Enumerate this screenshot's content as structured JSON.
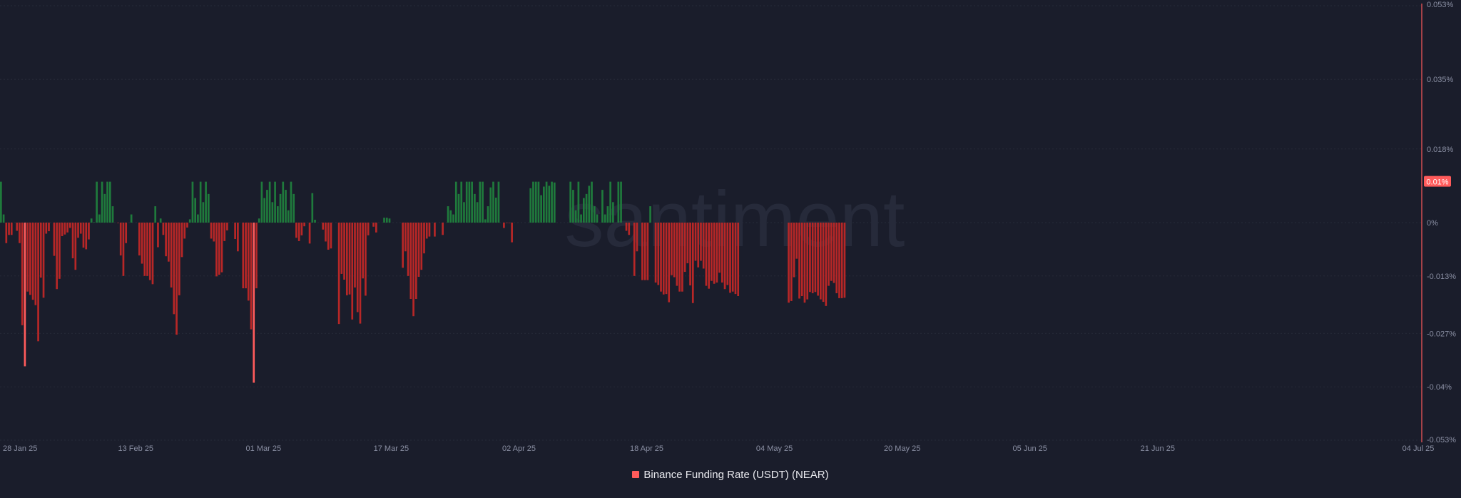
{
  "chart_data": {
    "type": "bar",
    "watermark": "santiment",
    "series": [
      {
        "name": "Binance Funding Rate (USDT) (NEAR)",
        "color": "#ff5b5b",
        "positive_color": "#1f7a3c",
        "negative_color": "#b72727",
        "start": "2025-01-27",
        "interval_hours": 8,
        "values": [
          0.01,
          0.002,
          -0.005,
          -0.003,
          -0.003,
          0.0,
          -0.002,
          -0.005,
          -0.025,
          -0.035,
          -0.0168,
          -0.0176,
          -0.0188,
          -0.0201,
          -0.0289,
          -0.0134,
          -0.0183,
          -0.0027,
          -0.0021,
          0.0,
          -0.0081,
          -0.0162,
          -0.0137,
          -0.0033,
          -0.0029,
          -0.0024,
          -0.0013,
          -0.0087,
          -0.0115,
          -0.0037,
          -0.0027,
          -0.0061,
          -0.0065,
          -0.0041,
          0.001,
          0.0001,
          0.01,
          0.002,
          0.01,
          0.007,
          0.01,
          0.01,
          0.004,
          0.0,
          -0.0001,
          -0.008,
          -0.013,
          -0.005,
          0.0,
          0.002,
          0.0,
          0.0,
          -0.008,
          -0.01,
          -0.013,
          -0.013,
          -0.014,
          -0.015,
          0.004,
          -0.006,
          0.001,
          -0.003,
          -0.0082,
          -0.0095,
          -0.0158,
          -0.0223,
          -0.0273,
          -0.0177,
          -0.0084,
          -0.0039,
          -0.0012,
          0.0008,
          0.01,
          0.006,
          0.002,
          0.01,
          0.005,
          0.01,
          0.007,
          -0.0039,
          -0.0046,
          -0.0131,
          -0.0127,
          -0.0121,
          -0.0045,
          -0.0019,
          0.0,
          0.0,
          -0.004,
          -0.007,
          0.0,
          -0.016,
          -0.016,
          -0.019,
          -0.026,
          -0.039,
          -0.016,
          0.001,
          0.01,
          0.006,
          0.008,
          0.01,
          0.005,
          0.01,
          0.004,
          0.007,
          0.01,
          0.008,
          0.003,
          0.01,
          0.007,
          -0.0037,
          -0.0045,
          -0.0031,
          -0.0009,
          0.0,
          -0.0051,
          0.0072,
          0.0007,
          0.0,
          0.0,
          -0.0017,
          -0.0046,
          -0.0066,
          -0.0063,
          0.0,
          0.0,
          -0.0247,
          -0.0125,
          -0.0139,
          -0.0177,
          -0.0175,
          -0.0236,
          -0.0158,
          -0.0218,
          -0.0246,
          -0.0136,
          -0.0178,
          -0.0031,
          0.0,
          -0.001,
          -0.0024,
          0.0,
          0.0,
          0.0012,
          0.0012,
          0.001,
          0.0,
          0.0,
          0.0,
          0.0,
          -0.011,
          -0.007,
          -0.013,
          -0.0186,
          -0.0228,
          -0.0186,
          -0.0132,
          -0.0115,
          -0.0075,
          -0.0039,
          -0.0034,
          0.0,
          -0.0034,
          0.0,
          0.0,
          -0.003,
          0.0,
          0.004,
          0.003,
          0.002,
          0.01,
          0.007,
          0.01,
          0.005,
          0.01,
          0.01,
          0.01,
          0.007,
          0.005,
          0.01,
          0.01,
          0.0008,
          0.004,
          0.0086,
          0.01,
          0.0061,
          0.01,
          0.0,
          -0.0013,
          -0.0001,
          -0.0001,
          -0.0048,
          0.0,
          0.0,
          0.0,
          0.0,
          0.0,
          0.0,
          0.0084,
          0.01,
          0.01,
          0.01,
          0.0067,
          0.0088,
          0.01,
          0.009,
          0.01,
          0.0098,
          0.0,
          0.0,
          0.0,
          0.0,
          0.0,
          0.01,
          0.008,
          0.003,
          0.01,
          0.002,
          0.006,
          0.007,
          0.009,
          0.01,
          0.004,
          0.002,
          0.0,
          0.008,
          0.002,
          0.004,
          0.01,
          0.005,
          0.0,
          0.01,
          0.01,
          0.0,
          -0.002,
          -0.003,
          0.0,
          -0.013,
          -0.007,
          0.0,
          -0.014,
          -0.014,
          -0.014,
          0.004,
          0.0,
          -0.0146,
          -0.0152,
          -0.0168,
          -0.0175,
          -0.0174,
          -0.0194,
          -0.0128,
          -0.0133,
          -0.0154,
          -0.0168,
          -0.0168,
          -0.012,
          -0.0099,
          -0.0153,
          -0.0196,
          -0.0093,
          -0.0109,
          -0.0093,
          -0.0112,
          -0.0154,
          -0.0161,
          -0.0142,
          -0.0149,
          -0.0146,
          -0.0122,
          -0.0146,
          -0.0162,
          -0.0152,
          -0.0171,
          -0.0168,
          -0.0174,
          -0.0179,
          0.0,
          0.0,
          0.0,
          0.0,
          0.0,
          0.0,
          0.0,
          0.0,
          0.0,
          0.0,
          0.0,
          0.0,
          0.0,
          0.0,
          0.0,
          0.0,
          0.0,
          0.0,
          -0.0195,
          -0.0191,
          -0.0133,
          -0.0088,
          -0.0185,
          -0.0179,
          -0.0195,
          -0.0187,
          -0.0169,
          -0.0172,
          -0.0169,
          -0.0178,
          -0.0187,
          -0.0193,
          -0.0203,
          -0.0154,
          -0.0142,
          -0.0147,
          -0.0172,
          -0.0184,
          -0.0184,
          -0.0183,
          0.0,
          0.0,
          0.0,
          0.0,
          0.0,
          0.0,
          0.0,
          0.0,
          0.0,
          0.0,
          0.0,
          0.0,
          0.0,
          0.0,
          0.0,
          0.0,
          0.0,
          0.0,
          0.0,
          0.0,
          0.0,
          0.0,
          0.0,
          0.0,
          0.0,
          0.0,
          0.0,
          0.0,
          0.0,
          0.0,
          0.0,
          0.0,
          0.0,
          0.0,
          0.0,
          0.0,
          0.0,
          0.0,
          0.0,
          0.0,
          0.0,
          0.0,
          0.0,
          0.0,
          0.0,
          0.0,
          0.0,
          0.0,
          0.0,
          0.0,
          0.0,
          0.0,
          0.0,
          0.0,
          0.0,
          0.0,
          0.0,
          0.0,
          0.0,
          0.0,
          0.0,
          0.0,
          0.0,
          0.0,
          0.0,
          0.0,
          0.0,
          0.0,
          0.0,
          0.0,
          0.0,
          0.0,
          0.0,
          0.0,
          0.0,
          0.0,
          0.0,
          0.0,
          0.0,
          0.0,
          0.0,
          0.0,
          0.0,
          0.0,
          0.0,
          0.0,
          0.0,
          0.0,
          0.0,
          0.0,
          0.0,
          0.0,
          0.0,
          0.0,
          0.0,
          0.0,
          0.0,
          0.0,
          0.0,
          0.0,
          0.0,
          0.0,
          0.0,
          0.0,
          0.0,
          0.0,
          0.0,
          0.0,
          0.0,
          0.0,
          0.0,
          0.0,
          0.0,
          0.0,
          0.0,
          0.0,
          0.0,
          0.0,
          0.0,
          0.0,
          0.0,
          0.0,
          0.0,
          0.0,
          0.0,
          0.0,
          0.0,
          0.0,
          0.0,
          0.0,
          0.0,
          0.0,
          0.0,
          0.0,
          0.0,
          0.0,
          0.0,
          0.0,
          0.0,
          0.0,
          0.0,
          0.0,
          0.0,
          0.0,
          0.0,
          0.0,
          0.0,
          0.0,
          0.0,
          0.0,
          0.0,
          0.0,
          0.0,
          0.0,
          0.0,
          0.0,
          0.0,
          0.0,
          0.0,
          0.0,
          0.0,
          0.0,
          0.0,
          0.0,
          0.0,
          0.0,
          0.0,
          0.0,
          0.0,
          0.0,
          0.0,
          0.0,
          0.0,
          0.0,
          0.0,
          0.0,
          0.0,
          0.0,
          0.0,
          0.0,
          0.0,
          0.0,
          0.0,
          0.0,
          0.0,
          0.0,
          0.0,
          0.0,
          0.0,
          0.0,
          0.0,
          0.0,
          0.0,
          0.0,
          0.0,
          0.0,
          0.0,
          0.0,
          0.0,
          0.0,
          0.0,
          0.0,
          0.0,
          0.0,
          0.0,
          0.0,
          0.0,
          0.0,
          0.0
        ]
      }
    ],
    "x_ticks": [
      "28 Jan 25",
      "13 Feb 25",
      "01 Mar 25",
      "17 Mar 25",
      "02 Apr 25",
      "18 Apr 25",
      "04 May 25",
      "20 May 25",
      "05 Jun 25",
      "21 Jun 25",
      "04 Jul 25"
    ],
    "y_ticks": [
      "0.053%",
      "0.035%",
      "0.018%",
      "0.01%",
      "0%",
      "-0.013%",
      "-0.027%",
      "-0.04%",
      "-0.053%"
    ],
    "y_tick_values": [
      0.053,
      0.035,
      0.018,
      0.01,
      0,
      -0.013,
      -0.027,
      -0.04,
      -0.053
    ],
    "highlight_label": "0.01%",
    "highlight_value": 0.01,
    "ylim": [
      -0.053,
      0.053
    ],
    "grid": true,
    "legend_position": "bottom-center"
  }
}
